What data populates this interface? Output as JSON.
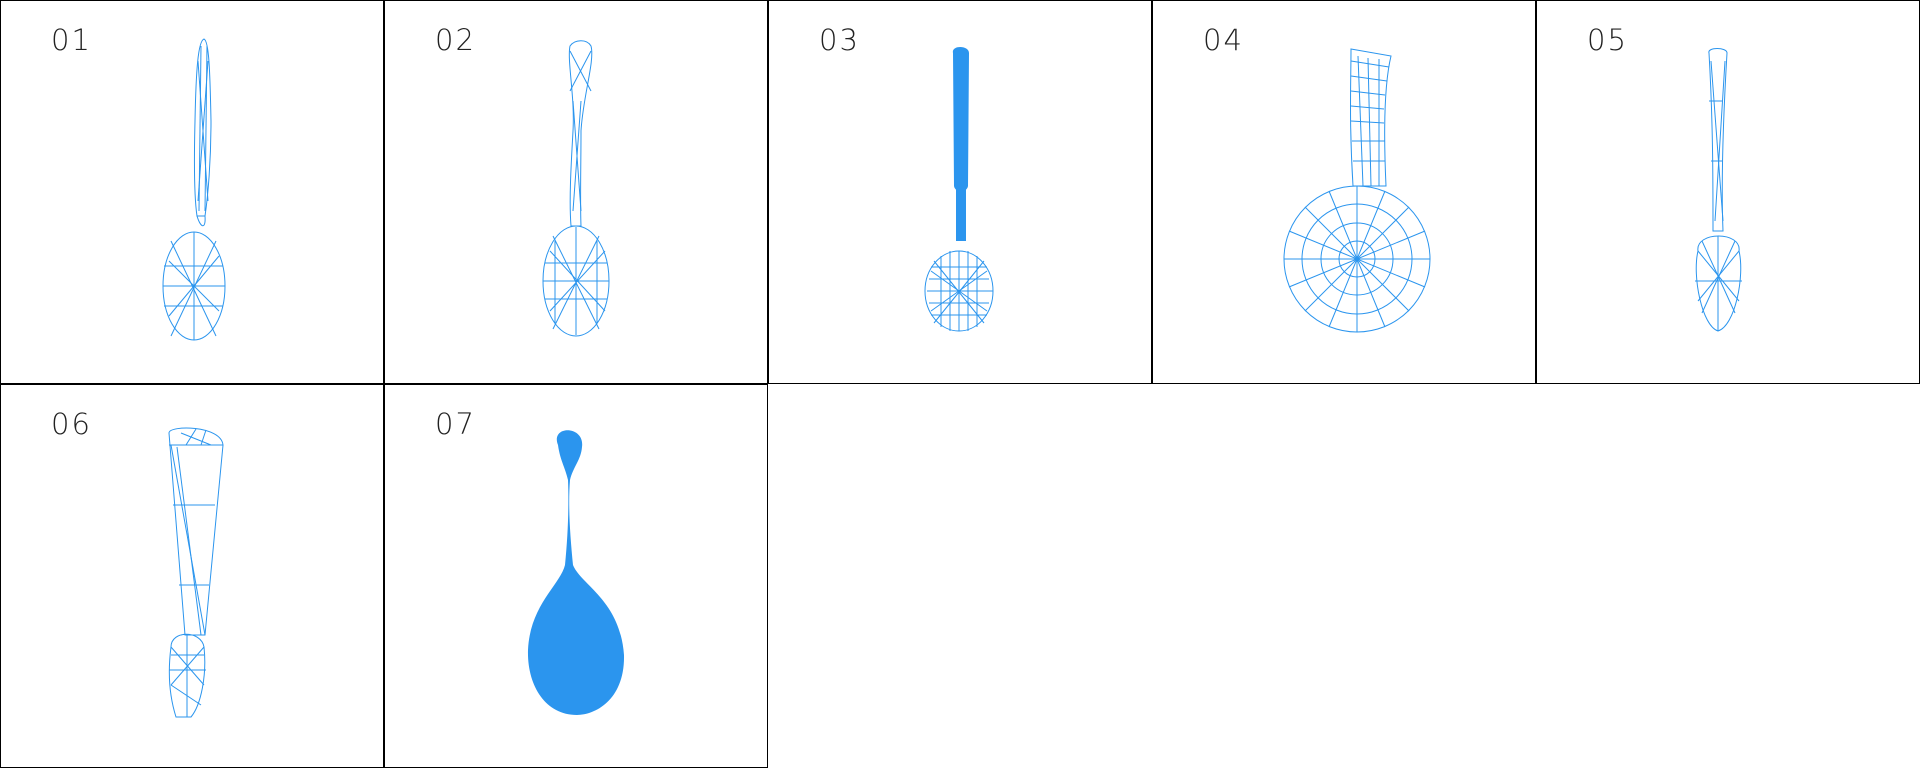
{
  "colors": {
    "mesh": "#2b95ee",
    "border": "#000000",
    "background": "#ffffff"
  },
  "tiles": [
    {
      "label": "01",
      "icon": "wireframe-spoon-icon"
    },
    {
      "label": "02",
      "icon": "wireframe-spoon-icon"
    },
    {
      "label": "03",
      "icon": "wireframe-spoon-icon"
    },
    {
      "label": "04",
      "icon": "wireframe-ladle-icon"
    },
    {
      "label": "05",
      "icon": "wireframe-spoon-icon"
    },
    {
      "label": "06",
      "icon": "wireframe-spoon-icon"
    },
    {
      "label": "07",
      "icon": "solid-spoon-icon"
    }
  ]
}
